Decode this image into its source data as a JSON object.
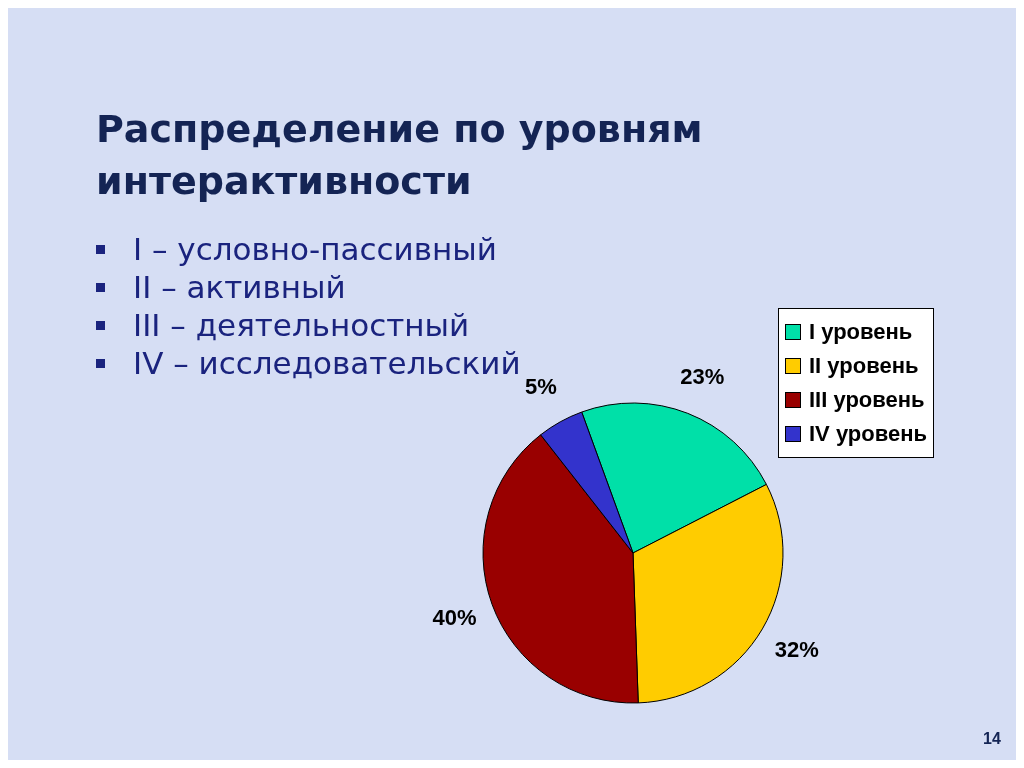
{
  "chart_data": {
    "type": "pie",
    "title": "Распределение по уровням интерактивности",
    "categories": [
      "I уровень",
      "II уровень",
      "III уровень",
      "IV уровень"
    ],
    "values": [
      23,
      32,
      40,
      5
    ],
    "colors": [
      "#00e0a8",
      "#ffcc00",
      "#990000",
      "#3333cc"
    ],
    "value_labels": [
      "23%",
      "32%",
      "40%",
      "5%"
    ],
    "legend": "right",
    "annotations": [
      "I – условно-пассивный",
      "II – активный",
      "III – деятельностный",
      "IV – исследовательский",
      "14"
    ]
  }
}
